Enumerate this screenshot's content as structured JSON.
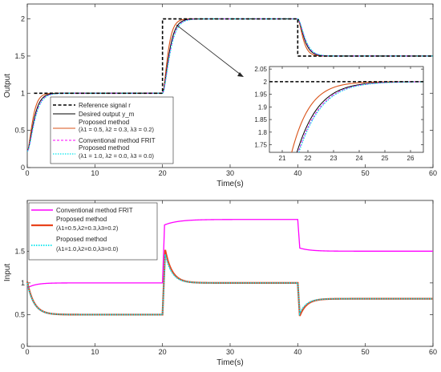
{
  "chart_data": [
    {
      "type": "line",
      "xlabel": "Time(s)",
      "ylabel": "Output",
      "xlim": [
        0,
        60
      ],
      "ylim": [
        0,
        2.2
      ],
      "xticks": [
        "0",
        "10",
        "20",
        "30",
        "40",
        "50",
        "60"
      ],
      "yticks": [
        "0",
        "0.5",
        "1",
        "1.5",
        "2"
      ],
      "legend": {
        "location": "lower-left",
        "entries": [
          "Reference signal r",
          "Desired output y_m",
          "Proposed method",
          "(λ1 = 0.5, λ2 = 0.3, λ3 = 0.2)",
          "Conventional method FRIT",
          "Proposed method",
          "(λ1 = 1.0, λ2 = 0.0, λ3 = 0.0)"
        ]
      },
      "series": [
        {
          "name": "Reference signal r",
          "color": "#000000",
          "style": "dashed",
          "x": [
            0,
            1,
            1,
            20,
            20,
            40,
            40,
            60
          ],
          "y": [
            0.0,
            0.0,
            1.0,
            1.0,
            2.0,
            2.0,
            1.5,
            1.5
          ]
        },
        {
          "name": "Desired output y_m",
          "color": "#000000",
          "style": "solid"
        },
        {
          "name": "Proposed method (λ1 = 0.5, λ2 = 0.3, λ3 = 0.2)",
          "color": "#d95319",
          "style": "solid"
        },
        {
          "name": "Conventional method FRIT",
          "color": "#ff00ff",
          "style": "dashed"
        },
        {
          "name": "Proposed method (λ1 = 1.0, λ2 = 0.0, λ3 = 0.0)",
          "color": "#00e5ee",
          "style": "dotted"
        }
      ],
      "inset": {
        "xlim": [
          20.5,
          26.5
        ],
        "ylim": [
          1.72,
          2.06
        ],
        "xticks": [
          "21",
          "22",
          "23",
          "24",
          "25",
          "26"
        ],
        "yticks": [
          "1.75",
          "1.8",
          "1.85",
          "1.9",
          "1.95",
          "2",
          "2.05"
        ]
      }
    },
    {
      "type": "line",
      "xlabel": "Time(s)",
      "ylabel": "Input",
      "xlim": [
        0,
        60
      ],
      "ylim": [
        0,
        2.3
      ],
      "xticks": [
        "0",
        "10",
        "20",
        "30",
        "40",
        "50",
        "60"
      ],
      "yticks": [
        "0",
        "0.5",
        "1",
        "1.5"
      ],
      "legend": {
        "location": "top-left",
        "entries": [
          "Conventional method FRIT",
          "Proposed method",
          "(λ1=0.5,λ2=0.3,λ3=0.2)",
          "Proposed method",
          "(λ1=1.0,λ2=0.0,λ3=0.0)"
        ]
      },
      "series": [
        {
          "name": "Conventional method FRIT",
          "color": "#ff00ff",
          "style": "solid",
          "steady_levels": {
            "0-20": 1.0,
            "20-40": 2.0,
            "40-60": 1.5
          }
        },
        {
          "name": "Proposed method (λ1=0.5,λ2=0.3,λ3=0.2)",
          "color": "#e8431c",
          "style": "solid",
          "steady_levels": {
            "0-20": 0.5,
            "20-40": 1.0,
            "40-60": 0.75
          },
          "peaks": {
            "0": 1.02,
            "20": 1.52,
            "40": 0.48
          }
        },
        {
          "name": "Proposed method (λ1=1.0,λ2=0.0,λ3=0.0)",
          "color": "#00e5ee",
          "style": "dotted",
          "steady_levels": {
            "0-20": 0.5,
            "20-40": 1.0,
            "40-60": 0.75
          }
        }
      ]
    }
  ]
}
